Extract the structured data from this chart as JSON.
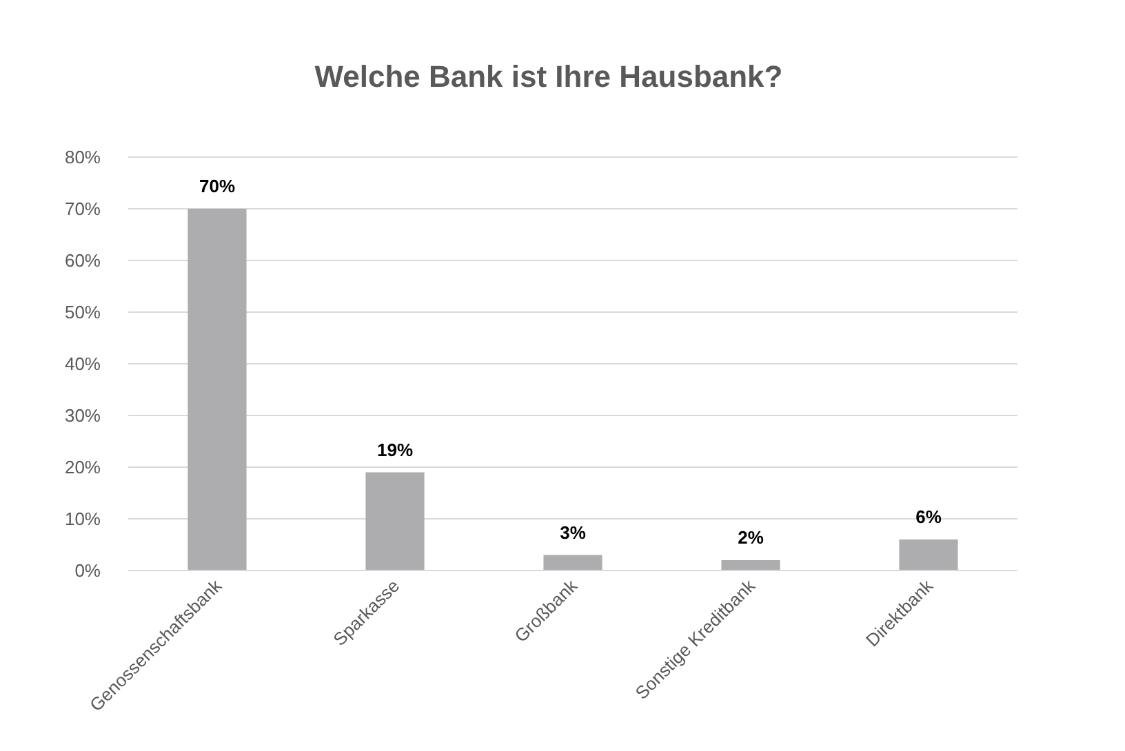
{
  "chart_data": {
    "type": "bar",
    "title": "Welche Bank ist Ihre Hausbank?",
    "categories": [
      "Genossenschaftsbank",
      "Sparkasse",
      "Großbank",
      "Sonstige Kreditbank",
      "Direktbank"
    ],
    "values": [
      70,
      19,
      3,
      2,
      6
    ],
    "value_labels": [
      "70%",
      "19%",
      "3%",
      "2%",
      "6%"
    ],
    "color": "#adadb0",
    "ylim": [
      0,
      80
    ],
    "yticks": [
      {
        "value": 0,
        "label": "0%"
      },
      {
        "value": 10,
        "label": "10%"
      },
      {
        "value": 20,
        "label": "20%"
      },
      {
        "value": 30,
        "label": "30%"
      },
      {
        "value": 40,
        "label": "40%"
      },
      {
        "value": 50,
        "label": "50%"
      },
      {
        "value": 60,
        "label": "60%"
      },
      {
        "value": 70,
        "label": "70%"
      },
      {
        "value": 80,
        "label": "80%"
      }
    ],
    "grid": "y"
  }
}
